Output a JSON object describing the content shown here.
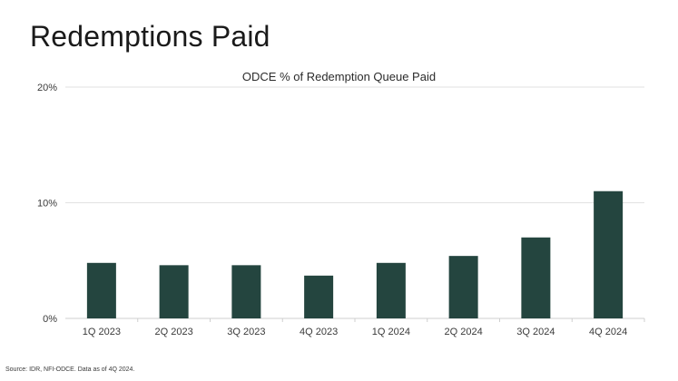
{
  "page": {
    "title": "Redemptions Paid",
    "source": "Source: IDR, NFI-ODCE. Data as of 4Q 2024."
  },
  "chart_data": {
    "type": "bar",
    "title": "ODCE % of Redemption Queue Paid",
    "xlabel": "",
    "ylabel": "",
    "categories": [
      "1Q 2023",
      "2Q 2023",
      "3Q 2023",
      "4Q 2023",
      "1Q 2024",
      "2Q 2024",
      "3Q 2024",
      "4Q 2024"
    ],
    "values": [
      4.8,
      4.6,
      4.6,
      3.7,
      4.8,
      5.4,
      7.0,
      11.0
    ],
    "ylim": [
      0,
      20
    ],
    "yticks": [
      0,
      10,
      20
    ],
    "ytick_labels": [
      "0%",
      "10%",
      "20%"
    ],
    "grid": true,
    "colors": {
      "bar": "#24453f",
      "grid": "#e2e2e2",
      "axis": "#cfcfcf"
    }
  }
}
